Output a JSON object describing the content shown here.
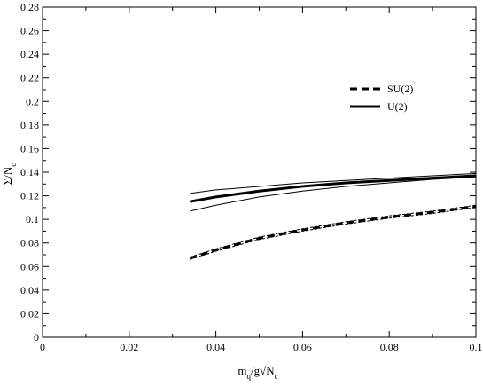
{
  "chart_data": {
    "type": "line",
    "title": "",
    "xlabel": "m_q/g√N_c",
    "ylabel": "Σ/N_c",
    "xlim": [
      0,
      0.1
    ],
    "ylim": [
      0,
      0.28
    ],
    "grid": false,
    "legend_position": "top-right",
    "x_ticks": [
      "0",
      "0.02",
      "0.04",
      "0.06",
      "0.08",
      "0.1"
    ],
    "y_ticks": [
      "0",
      "0.02",
      "0.04",
      "0.06",
      "0.08",
      "0.1",
      "0.12",
      "0.14",
      "0.16",
      "0.18",
      "0.2",
      "0.22",
      "0.24",
      "0.26",
      "0.28"
    ],
    "x": [
      0.034,
      0.04,
      0.05,
      0.06,
      0.07,
      0.08,
      0.09,
      0.1
    ],
    "series": [
      {
        "name": "SU(2)",
        "style": "dashed",
        "values": [
          0.067,
          0.074,
          0.084,
          0.091,
          0.097,
          0.102,
          0.106,
          0.111
        ]
      },
      {
        "name": "U(2)",
        "style": "solid",
        "values": [
          0.115,
          0.119,
          0.124,
          0.128,
          0.131,
          0.133,
          0.135,
          0.137
        ]
      }
    ],
    "bands": [
      {
        "style": "thin-solid",
        "lower": [
          0.107,
          0.112,
          0.119,
          0.124,
          0.128,
          0.131,
          0.134,
          0.136
        ],
        "upper": [
          0.122,
          0.125,
          0.128,
          0.131,
          0.133,
          0.135,
          0.137,
          0.139
        ]
      },
      {
        "style": "thin-dashed",
        "lower": [
          0.066,
          0.073,
          0.083,
          0.09,
          0.096,
          0.101,
          0.105,
          0.11
        ],
        "upper": [
          0.068,
          0.075,
          0.085,
          0.092,
          0.098,
          0.103,
          0.107,
          0.112
        ]
      }
    ]
  },
  "colors": {
    "line": "#000000",
    "background": "#ffffff"
  }
}
